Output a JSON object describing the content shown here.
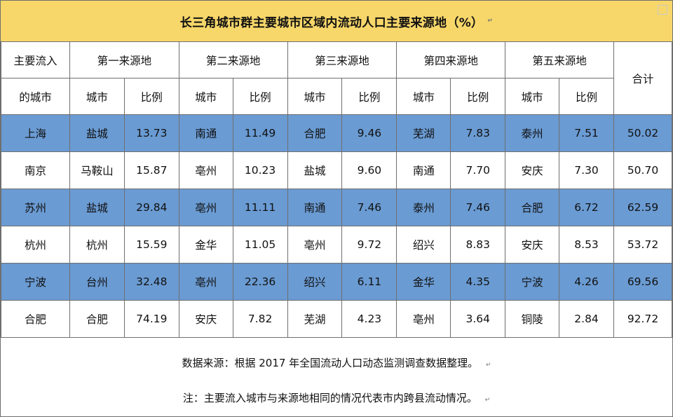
{
  "title": "长三角城市群主要城市区域内流动人口主要来源地（%）",
  "para_mark": "↵",
  "watermark": "",
  "header": {
    "city_col_line1": "主要流入",
    "city_col_line2": "的城市",
    "sources": [
      "第一来源地",
      "第二来源地",
      "第三来源地",
      "第四来源地",
      "第五来源地"
    ],
    "sub_city": "城市",
    "sub_ratio": "比例",
    "total": "合计"
  },
  "rows": [
    {
      "city": "上海",
      "s": [
        [
          "盐城",
          "13.73"
        ],
        [
          "南通",
          "11.49"
        ],
        [
          "合肥",
          "9.46"
        ],
        [
          "芜湖",
          "7.83"
        ],
        [
          "泰州",
          "7.51"
        ]
      ],
      "total": "50.02",
      "highlight": true
    },
    {
      "city": "南京",
      "s": [
        [
          "马鞍山",
          "15.87"
        ],
        [
          "亳州",
          "10.23"
        ],
        [
          "盐城",
          "9.60"
        ],
        [
          "南通",
          "7.70"
        ],
        [
          "安庆",
          "7.30"
        ]
      ],
      "total": "50.70",
      "highlight": false
    },
    {
      "city": "苏州",
      "s": [
        [
          "盐城",
          "29.84"
        ],
        [
          "亳州",
          "11.11"
        ],
        [
          "南通",
          "7.46"
        ],
        [
          "泰州",
          "7.46"
        ],
        [
          "合肥",
          "6.72"
        ]
      ],
      "total": "62.59",
      "highlight": true
    },
    {
      "city": "杭州",
      "s": [
        [
          "杭州",
          "15.59"
        ],
        [
          "金华",
          "11.05"
        ],
        [
          "亳州",
          "9.72"
        ],
        [
          "绍兴",
          "8.83"
        ],
        [
          "安庆",
          "8.53"
        ]
      ],
      "total": "53.72",
      "highlight": false
    },
    {
      "city": "宁波",
      "s": [
        [
          "台州",
          "32.48"
        ],
        [
          "亳州",
          "22.36"
        ],
        [
          "绍兴",
          "6.11"
        ],
        [
          "金华",
          "4.35"
        ],
        [
          "宁波",
          "4.26"
        ]
      ],
      "total": "69.56",
      "highlight": true
    },
    {
      "city": "合肥",
      "s": [
        [
          "合肥",
          "74.19"
        ],
        [
          "安庆",
          "7.82"
        ],
        [
          "芜湖",
          "4.23"
        ],
        [
          "亳州",
          "3.64"
        ],
        [
          "铜陵",
          "2.84"
        ]
      ],
      "total": "92.72",
      "highlight": false
    }
  ],
  "notes": {
    "source": "数据来源：根据 2017 年全国流动人口动态监测调查数据整理。",
    "note": "注：主要流入城市与来源地相同的情况代表市内跨县流动情况。"
  }
}
